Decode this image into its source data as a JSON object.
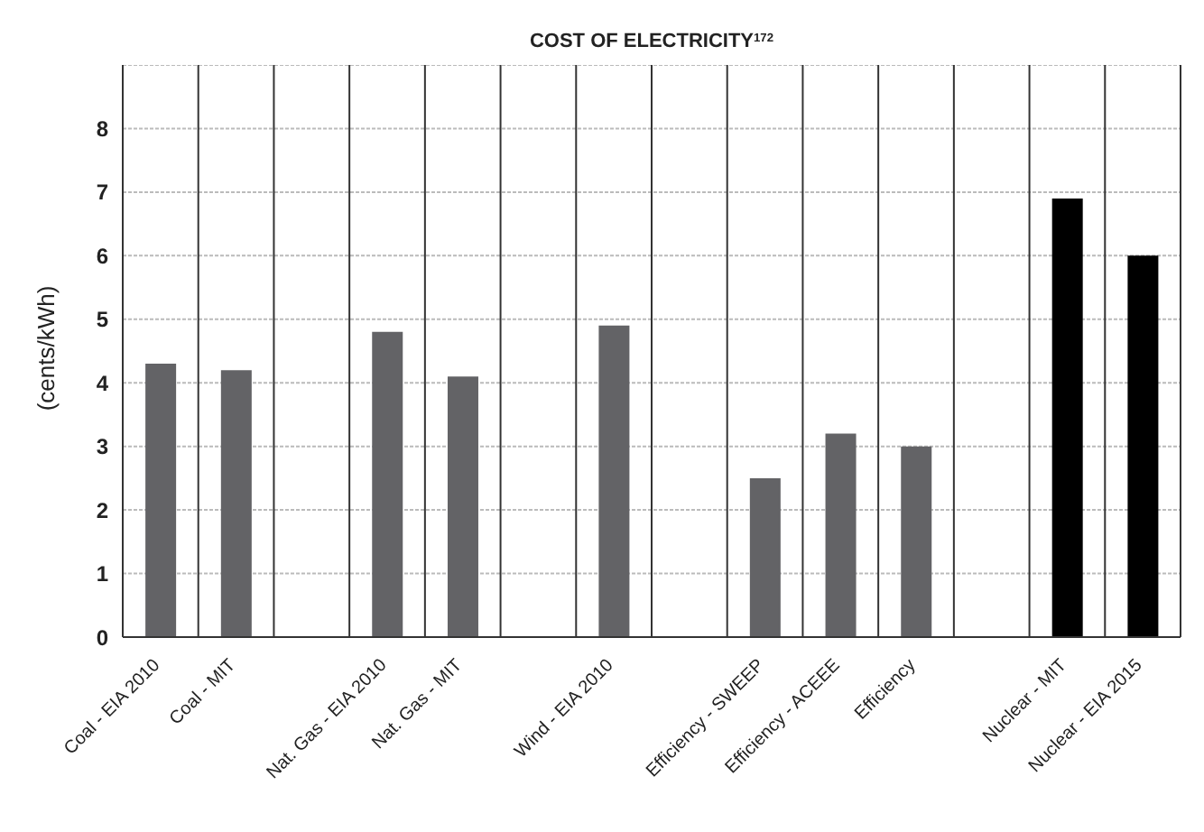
{
  "chart_data": {
    "type": "bar",
    "title": "COST OF ELECTRICITY$^{172}$",
    "ylabel": "(cents/kWh)",
    "categories": [
      "Coal - EIA 2010",
      "Coal - MIT",
      null,
      "Nat. Gas - EIA 2010",
      "Nat. Gas - MIT",
      null,
      "Wind - EIA 2010",
      null,
      "Efficiency - SWEEP",
      "Efficiency - ACEEE",
      "Efficiency",
      null,
      "Nuclear - MIT",
      "Nuclear - EIA 2015"
    ],
    "values": [
      4.3,
      4.2,
      null,
      4.8,
      4.1,
      null,
      4.9,
      null,
      2.5,
      3.2,
      3.0,
      null,
      6.9,
      6.0
    ],
    "colors": [
      "#636366",
      "#636366",
      "#636366",
      "#636366",
      "#636366",
      "#636366",
      "#636366",
      "#636366",
      "#636366",
      "#636366",
      "#636366",
      "#636366",
      "#000000",
      "#000000"
    ],
    "ylim": [
      0,
      9
    ],
    "yticks": [
      0,
      1,
      2,
      3,
      4,
      5,
      6,
      7,
      8
    ],
    "grid": true
  }
}
